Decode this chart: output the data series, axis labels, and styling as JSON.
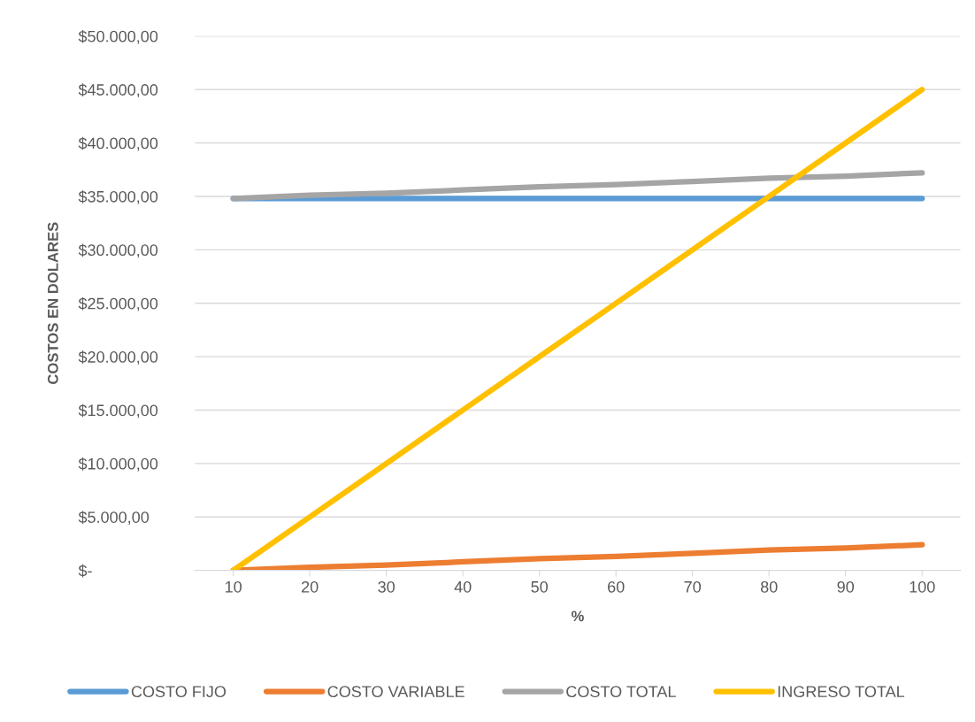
{
  "chart_data": {
    "type": "line",
    "xlabel": "%",
    "ylabel": "COSTOS EN DOLARES",
    "categories": [
      "10",
      "20",
      "30",
      "40",
      "50",
      "60",
      "70",
      "80",
      "90",
      "100"
    ],
    "series": [
      {
        "name": "COSTO FIJO",
        "color": "#5b9bd5",
        "values": [
          34800,
          34800,
          34800,
          34800,
          34800,
          34800,
          34800,
          34800,
          34800,
          34800
        ]
      },
      {
        "name": "COSTO VARIABLE",
        "color": "#ed7d31",
        "values": [
          0,
          300,
          500,
          800,
          1100,
          1300,
          1600,
          1900,
          2100,
          2400
        ]
      },
      {
        "name": "COSTO TOTAL",
        "color": "#a5a5a5",
        "values": [
          34800,
          35100,
          35300,
          35600,
          35900,
          36100,
          36400,
          36700,
          36900,
          37200
        ]
      },
      {
        "name": "INGRESO TOTAL",
        "color": "#ffc000",
        "values": [
          0,
          5000,
          10000,
          15000,
          20000,
          25000,
          30000,
          35000,
          40000,
          45000
        ]
      }
    ],
    "ylim": [
      0,
      50000
    ],
    "yticks": [
      {
        "value": 0,
        "label": "$-"
      },
      {
        "value": 5000,
        "label": "$5.000,00"
      },
      {
        "value": 10000,
        "label": "$10.000,00"
      },
      {
        "value": 15000,
        "label": "$15.000,00"
      },
      {
        "value": 20000,
        "label": "$20.000,00"
      },
      {
        "value": 25000,
        "label": "$25.000,00"
      },
      {
        "value": 30000,
        "label": "$30.000,00"
      },
      {
        "value": 35000,
        "label": "$35.000,00"
      },
      {
        "value": 40000,
        "label": "$40.000,00"
      },
      {
        "value": 45000,
        "label": "$45.000,00"
      },
      {
        "value": 50000,
        "label": "$50.000,00"
      }
    ],
    "grid": "y",
    "legend": "bottom",
    "marker": "none",
    "line_style": "solid"
  }
}
